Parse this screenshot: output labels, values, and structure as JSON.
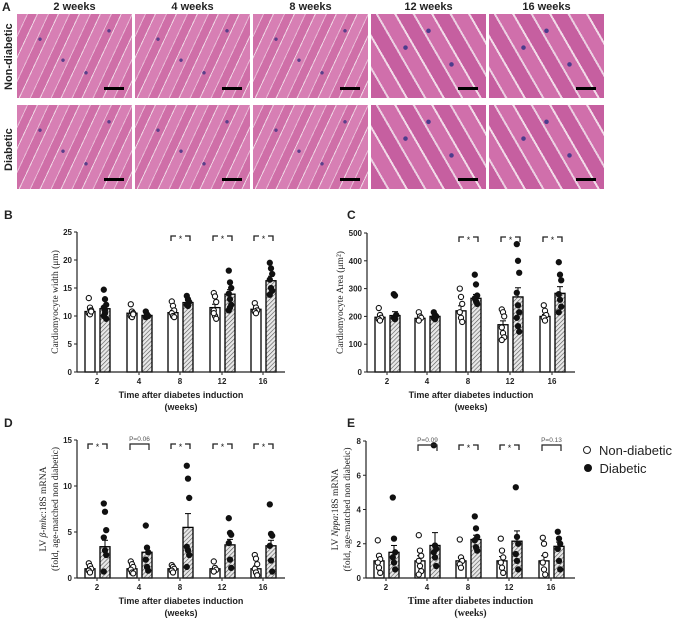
{
  "panel_a": {
    "letter": "A",
    "columns": [
      "2 weeks",
      "4 weeks",
      "8 weeks",
      "12 weeks",
      "16 weeks"
    ],
    "rows": [
      "Non-diabetic",
      "Diabetic"
    ]
  },
  "legend": {
    "items": [
      {
        "label": "Non-diabetic",
        "marker": "open-circle"
      },
      {
        "label": "Diabetic",
        "marker": "filled-circle"
      }
    ]
  },
  "colors": {
    "non_diabetic_fill": "#ffffff",
    "diabetic_fill": "hatched-gray",
    "stroke": "#000000"
  },
  "chart_data": [
    {
      "panel": "B",
      "type": "bar",
      "categories": [
        "2",
        "4",
        "8",
        "12",
        "16"
      ],
      "xlabel": [
        "Time after diabetes induction",
        "(weeks)"
      ],
      "ylabel": {
        "prefix": "Cardiomyocyte width (μm)",
        "italic": "",
        "suffix": "",
        "line2": ""
      },
      "ylim": [
        0,
        25
      ],
      "yticks": [
        0,
        5,
        10,
        15,
        20,
        25
      ],
      "series": [
        {
          "name": "Non-diabetic",
          "values": [
            10.8,
            10.5,
            10.6,
            11.5,
            11.2
          ],
          "sem": [
            0.4,
            0.3,
            0.4,
            0.6,
            0.3
          ],
          "points": [
            [
              13.2,
              11.5,
              11,
              10.5,
              10.3,
              10.8
            ],
            [
              12.1,
              10.8,
              10.5,
              10,
              9.8,
              10.3
            ],
            [
              12.6,
              11.8,
              11,
              10.5,
              10,
              9.8
            ],
            [
              14.1,
              13.5,
              12.5,
              11,
              10,
              9.5,
              10.5
            ],
            [
              12.3,
              11.5,
              11,
              10.8,
              10.5
            ]
          ]
        },
        {
          "name": "Diabetic",
          "values": [
            11.3,
            10.1,
            12.4,
            13.9,
            16.3
          ],
          "sem": [
            0.6,
            0.2,
            0.3,
            0.8,
            0.8
          ],
          "points": [
            [
              14.7,
              13,
              12,
              11.5,
              10.5,
              9.5,
              10,
              11
            ],
            [
              10.8,
              10.3,
              10,
              9.8,
              10.2
            ],
            [
              13.6,
              13,
              12.5,
              12,
              11.8
            ],
            [
              18.1,
              16,
              15,
              14,
              13,
              12,
              11,
              11.5
            ],
            [
              19.5,
              18.5,
              17.5,
              16.5,
              15,
              14.5,
              13.8
            ]
          ]
        }
      ],
      "significance": [
        "",
        "",
        "*",
        "*",
        "*"
      ]
    },
    {
      "panel": "C",
      "type": "bar",
      "categories": [
        "2",
        "4",
        "8",
        "12",
        "16"
      ],
      "xlabel": [
        "Time after diabetes induction",
        "(weeks)"
      ],
      "ylabel": {
        "prefix": "Cardiomyocyte Area (μm²)",
        "italic": "",
        "suffix": "",
        "line2": ""
      },
      "ylim": [
        0,
        500
      ],
      "yticks": [
        0,
        100,
        200,
        300,
        400,
        500
      ],
      "series": [
        {
          "name": "Non-diabetic",
          "values": [
            197,
            193,
            220,
            170,
            200
          ],
          "sem": [
            7,
            5,
            18,
            14,
            7
          ],
          "points": [
            [
              230,
              205,
              195,
              190,
              185
            ],
            [
              215,
              200,
              195,
              185
            ],
            [
              300,
              270,
              245,
              215,
              195,
              180
            ],
            [
              225,
              215,
              200,
              160,
              140,
              125,
              115
            ],
            [
              240,
              220,
              205,
              195,
              185
            ]
          ]
        },
        {
          "name": "Diabetic",
          "values": [
            203,
            200,
            265,
            270,
            283
          ],
          "sem": [
            14,
            5,
            14,
            33,
            24
          ],
          "points": [
            [
              280,
              275,
              205,
              195,
              190
            ],
            [
              215,
              205,
              200,
              195,
              190
            ],
            [
              350,
              315,
              275,
              265,
              255,
              245
            ],
            [
              460,
              400,
              357,
              285,
              240,
              215,
              195,
              165,
              145
            ],
            [
              395,
              350,
              330,
              280,
              260,
              235,
              215
            ]
          ]
        }
      ],
      "significance": [
        "",
        "",
        "*",
        "*",
        "*"
      ]
    },
    {
      "panel": "D",
      "type": "bar",
      "categories": [
        "2",
        "4",
        "8",
        "12",
        "16"
      ],
      "xlabel": [
        "Time after diabetes induction",
        "(weeks)"
      ],
      "ylabel": {
        "prefix": "LV ",
        "italic": "β-mhc",
        "suffix": ":18S mRNA",
        "line2": "(fold, age-matched non diabetic)"
      },
      "ylim": [
        0,
        15
      ],
      "yticks": [
        0,
        5,
        10,
        15
      ],
      "series": [
        {
          "name": "Non-diabetic",
          "values": [
            1,
            1,
            1,
            1,
            1
          ],
          "sem": [
            0.15,
            0.2,
            0.12,
            0.15,
            0.3
          ],
          "points": [
            [
              1.6,
              1.3,
              1.0,
              0.8,
              0.6
            ],
            [
              1.8,
              1.5,
              1.2,
              0.9,
              0.6,
              0.5
            ],
            [
              1.4,
              1.2,
              1.0,
              0.8,
              0.6
            ],
            [
              1.8,
              1.1,
              0.9,
              0.7
            ],
            [
              2.5,
              2.1,
              1.5,
              1.0,
              0.6,
              0.3
            ]
          ]
        },
        {
          "name": "Diabetic",
          "values": [
            3.4,
            2.8,
            5.5,
            3.6,
            3.5
          ],
          "sem": [
            0.7,
            0.5,
            1.5,
            0.6,
            0.6
          ],
          "points": [
            [
              8.1,
              7.2,
              5.2,
              4.4,
              3.0,
              2.5,
              0.7
            ],
            [
              5.7,
              3.3,
              2.8,
              2.0,
              1.2,
              0.8
            ],
            [
              12.2,
              10.8,
              8.7,
              3.4,
              3.0,
              2.5,
              1.2
            ],
            [
              6.5,
              4.9,
              4.7,
              3.8,
              2.0,
              1.1
            ],
            [
              8.0,
              4.8,
              4.6,
              3.5,
              1.9,
              0.7
            ]
          ]
        }
      ],
      "significance": [
        "*",
        "P=0.06",
        "*",
        "*",
        "*"
      ]
    },
    {
      "panel": "E",
      "type": "bar",
      "categories": [
        "2",
        "4",
        "8",
        "12",
        "16"
      ],
      "xlabel": [
        "Time after diabetes induction",
        "(weeks)"
      ],
      "ylabel": {
        "prefix": "LV ",
        "italic": "Nppa",
        "suffix": ":18S mRNA",
        "line2": "(fold, age-matched non diabetic)"
      },
      "ylim": [
        0,
        8
      ],
      "yticks": [
        0,
        2,
        4,
        6,
        8
      ],
      "series": [
        {
          "name": "Non-diabetic",
          "values": [
            1,
            1,
            1,
            1,
            1
          ],
          "sem": [
            0.25,
            0.3,
            0.2,
            0.25,
            0.3
          ],
          "points": [
            [
              2.2,
              1.3,
              1.1,
              0.9,
              0.6,
              0.3
            ],
            [
              2.5,
              1.6,
              1.3,
              1.0,
              0.7,
              0.4,
              0.2
            ],
            [
              2.25,
              1.2,
              1.0,
              0.8,
              0.6
            ],
            [
              2.3,
              1.6,
              1.2,
              0.9,
              0.6,
              0.3
            ],
            [
              2.35,
              2.0,
              1.35,
              0.9,
              0.5,
              0.2
            ]
          ]
        },
        {
          "name": "Diabetic",
          "values": [
            1.5,
            1.9,
            2.25,
            2.15,
            1.85
          ],
          "sem": [
            0.4,
            0.75,
            0.25,
            0.6,
            0.25
          ],
          "points": [
            [
              4.7,
              2.3,
              1.5,
              1.2,
              0.9,
              0.5
            ],
            [
              7.75,
              1.9,
              1.7,
              1.5,
              1.2,
              0.7
            ],
            [
              3.6,
              2.9,
              2.4,
              2.2,
              1.8,
              1.6
            ],
            [
              5.3,
              2.4,
              2.0,
              1.4,
              1.0,
              0.5
            ],
            [
              2.7,
              2.3,
              2.0,
              1.7,
              1.0,
              0.5
            ]
          ]
        }
      ],
      "significance": [
        "",
        "P=0.09",
        "*",
        "*",
        "P=0.13"
      ]
    }
  ]
}
